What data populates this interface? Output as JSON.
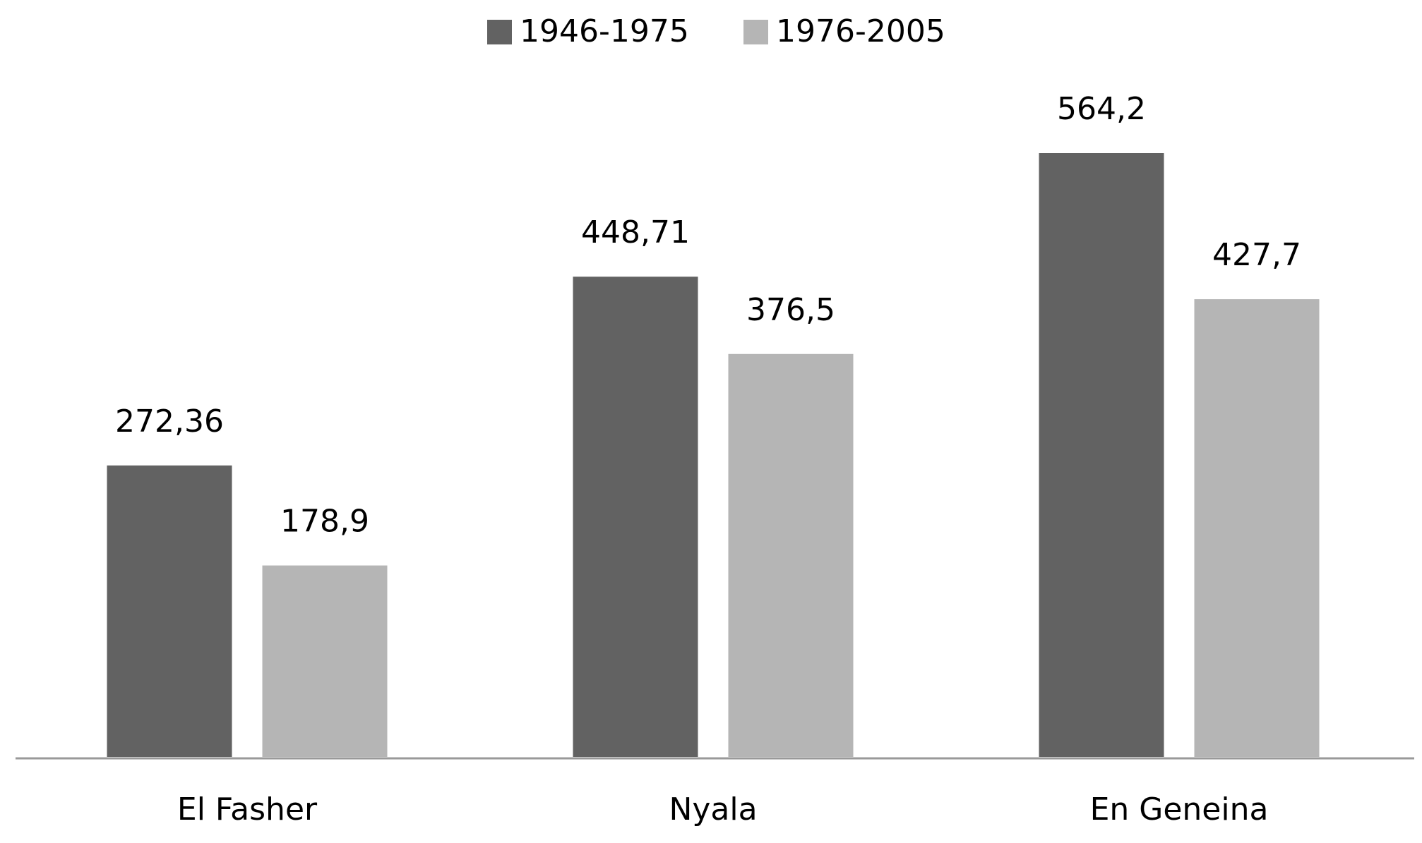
{
  "chart_data": {
    "type": "bar",
    "categories": [
      "El Fasher",
      "Nyala",
      "En Geneina"
    ],
    "series": [
      {
        "name": "1946-1975",
        "color": "#626262",
        "values": [
          272.36,
          448.71,
          564.2
        ],
        "value_labels": [
          "272,36",
          "448,71",
          "564,2"
        ]
      },
      {
        "name": "1976-2005",
        "color": "#b5b5b5",
        "values": [
          178.9,
          376.5,
          427.7
        ],
        "value_labels": [
          "178,9",
          "376,5",
          "427,7"
        ]
      }
    ],
    "legend": "top"
  }
}
